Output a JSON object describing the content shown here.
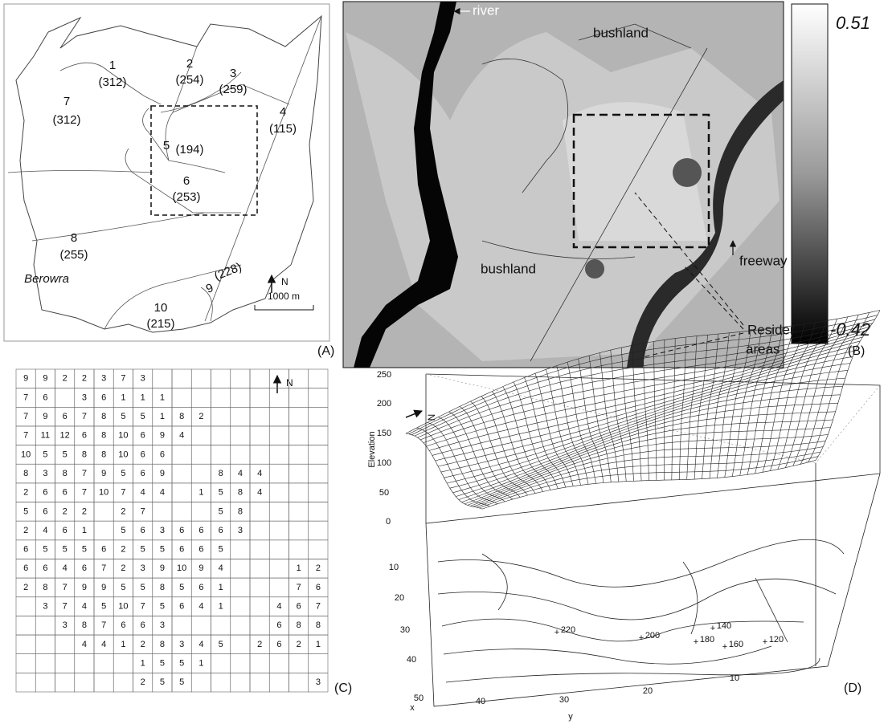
{
  "panel_a": {
    "regions": [
      {
        "number": 1,
        "count": "(312)"
      },
      {
        "number": 2,
        "count": "(254)"
      },
      {
        "number": 3,
        "count": "(259)"
      },
      {
        "number": 4,
        "count": "(115)"
      },
      {
        "number": 5,
        "count": "(194)"
      },
      {
        "number": 6,
        "count": "(253)"
      },
      {
        "number": 7,
        "count": "(312)"
      },
      {
        "number": 8,
        "count": "(255)"
      },
      {
        "number": 9,
        "count": "(228)"
      },
      {
        "number": 10,
        "count": "(215)"
      }
    ],
    "place": "Berowra",
    "north": "N",
    "scale_bar": "1000 m",
    "label": "(A)"
  },
  "panel_b": {
    "river": "river",
    "bushland_top": "bushland",
    "bushland_bottom": "bushland",
    "freeway": "freeway",
    "residential": [
      "Residential",
      "areas"
    ],
    "colorbar": {
      "max": 0.51,
      "min": -0.42
    },
    "label": "(B)"
  },
  "panel_c": {
    "north": "N",
    "label": "(C)",
    "rows": [
      [
        9,
        9,
        2,
        2,
        3,
        7,
        3,
        null,
        null,
        null,
        null,
        null,
        null,
        null,
        null,
        null
      ],
      [
        7,
        6,
        null,
        3,
        6,
        1,
        1,
        1,
        null,
        null,
        null,
        null,
        null,
        null,
        null,
        null
      ],
      [
        7,
        9,
        6,
        7,
        8,
        5,
        5,
        1,
        8,
        2,
        null,
        null,
        null,
        null,
        null,
        null
      ],
      [
        7,
        11,
        12,
        6,
        8,
        10,
        6,
        9,
        4,
        null,
        null,
        null,
        null,
        null,
        null,
        null
      ],
      [
        10,
        5,
        5,
        8,
        8,
        10,
        6,
        6,
        null,
        null,
        null,
        null,
        null,
        null,
        null,
        null
      ],
      [
        8,
        3,
        8,
        7,
        9,
        5,
        6,
        9,
        null,
        null,
        8,
        4,
        4,
        null,
        null,
        null
      ],
      [
        2,
        6,
        6,
        7,
        10,
        7,
        4,
        4,
        null,
        1,
        5,
        8,
        4,
        null,
        null,
        null
      ],
      [
        5,
        6,
        2,
        2,
        null,
        2,
        7,
        null,
        null,
        null,
        5,
        8,
        null,
        null,
        null,
        null
      ],
      [
        2,
        4,
        6,
        1,
        null,
        5,
        6,
        3,
        6,
        6,
        6,
        3,
        null,
        null,
        null,
        null
      ],
      [
        6,
        5,
        5,
        5,
        6,
        2,
        5,
        5,
        6,
        6,
        5,
        null,
        null,
        null,
        null,
        null
      ],
      [
        6,
        6,
        4,
        6,
        7,
        2,
        3,
        9,
        10,
        9,
        4,
        null,
        null,
        null,
        1,
        2
      ],
      [
        2,
        8,
        7,
        9,
        9,
        5,
        5,
        8,
        5,
        6,
        1,
        null,
        null,
        null,
        7,
        6
      ],
      [
        null,
        3,
        7,
        4,
        5,
        10,
        7,
        5,
        6,
        4,
        1,
        null,
        null,
        4,
        6,
        7
      ],
      [
        null,
        null,
        3,
        8,
        7,
        6,
        6,
        3,
        null,
        null,
        null,
        null,
        null,
        6,
        8,
        8
      ],
      [
        null,
        null,
        null,
        4,
        4,
        1,
        2,
        8,
        3,
        4,
        5,
        null,
        2,
        6,
        2,
        1
      ],
      [
        null,
        null,
        null,
        null,
        null,
        null,
        1,
        5,
        5,
        1,
        null,
        null,
        null,
        null,
        null,
        null
      ],
      [
        null,
        null,
        null,
        null,
        null,
        null,
        2,
        5,
        5,
        null,
        null,
        null,
        null,
        null,
        null,
        3
      ]
    ]
  },
  "panel_d": {
    "z_label": "Elevation",
    "x_label": "x",
    "y_label": "y",
    "north": "N",
    "label": "(D)",
    "zticks": [
      250,
      200,
      150,
      100,
      50,
      0
    ],
    "xticks": [
      10,
      20,
      30,
      40,
      50
    ],
    "yticks": [
      40,
      30,
      20,
      10
    ],
    "contour_labels": [
      220,
      200,
      180,
      160,
      140,
      120
    ]
  }
}
